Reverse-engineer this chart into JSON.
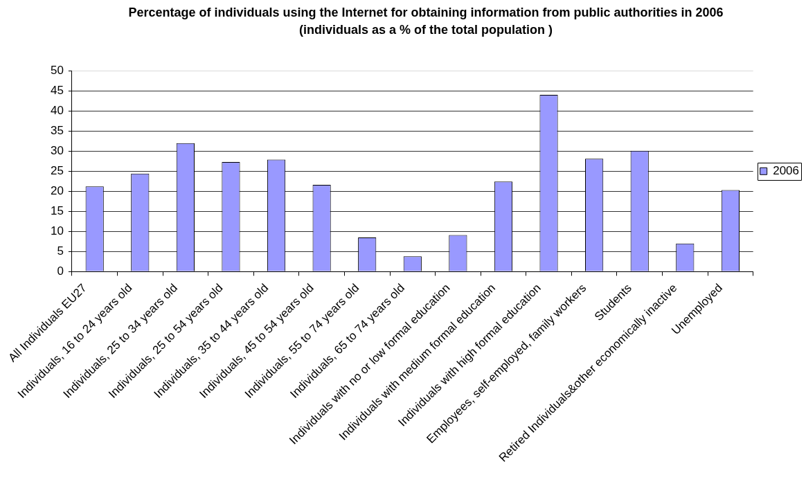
{
  "chart_data": {
    "type": "bar",
    "title": "Percentage of individuals using the Internet for obtaining information from public authorities in 2006",
    "subtitle": "(individuals as a % of the total population )",
    "categories": [
      "All Individuals EU27",
      "Individuals, 16 to 24 years old",
      "Individuals, 25 to 34 years old",
      "Individuals, 25 to 54 years old",
      "Individuals, 35 to 44 years old",
      "Individuals, 45 to 54 years old",
      "Individuals, 55 to 74 years old",
      "Individuals, 65 to 74 years old",
      "Individuals with no or low formal education",
      "Individuals with medium formal education",
      "Individuals with high formal education",
      "Employees, self-employed, family workers",
      "Students",
      "Retired Individuals&other economically inactive",
      "Unemployed"
    ],
    "series": [
      {
        "name": "2006",
        "color": "#9999ff",
        "values": [
          21.2,
          24.4,
          32.0,
          27.3,
          27.9,
          21.6,
          8.5,
          3.8,
          9.1,
          22.4,
          44.0,
          28.1,
          30.1,
          7.0,
          20.3
        ]
      }
    ],
    "ylim": [
      0,
      50
    ],
    "yticks": [
      0,
      5,
      10,
      15,
      20,
      25,
      30,
      35,
      40,
      45,
      50
    ],
    "grid": "y",
    "legend": "right"
  }
}
